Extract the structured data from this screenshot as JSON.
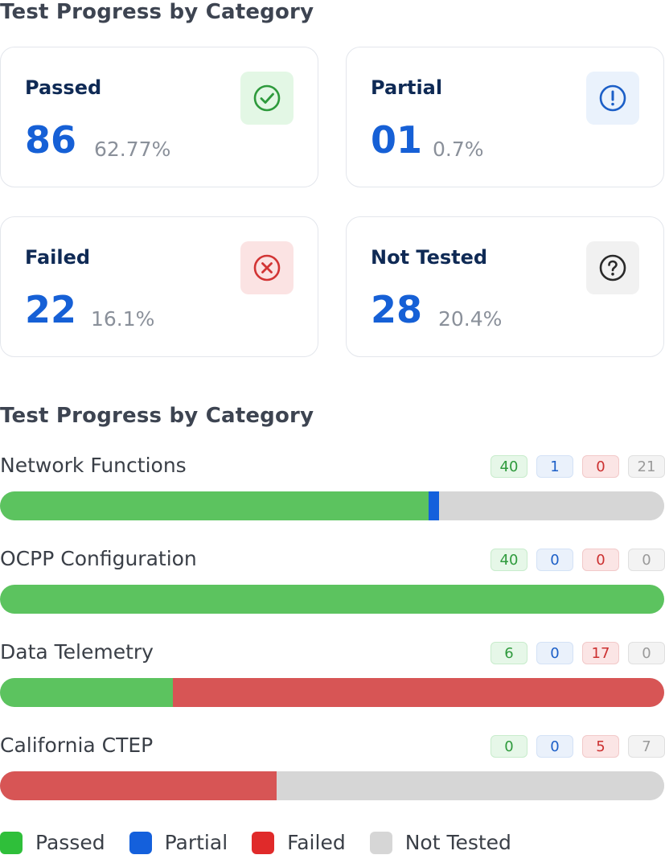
{
  "summary": {
    "title": "Test Progress by Category",
    "cards": [
      {
        "label": "Passed",
        "value": "86",
        "percent": "62.77%",
        "icon": "check-circle-icon",
        "icon_color": "#2e9a3c",
        "icon_bg": "#e3f7e5"
      },
      {
        "label": "Partial",
        "value": "01",
        "percent": "0.7%",
        "icon": "exclamation-circle-icon",
        "icon_color": "#1c5fc7",
        "icon_bg": "#eaf2fc"
      },
      {
        "label": "Failed",
        "value": "22",
        "percent": "16.1%",
        "icon": "x-circle-icon",
        "icon_color": "#d23535",
        "icon_bg": "#fbe3e3"
      },
      {
        "label": "Not Tested",
        "value": "28",
        "percent": "20.4%",
        "icon": "question-circle-icon",
        "icon_color": "#2a2a2a",
        "icon_bg": "#f1f1f1"
      }
    ]
  },
  "categories": {
    "title": "Test Progress by Category",
    "items": [
      {
        "name": "Network Functions",
        "passed": 40,
        "partial": 1,
        "failed": 0,
        "not_tested": 21
      },
      {
        "name": "OCPP Configuration",
        "passed": 40,
        "partial": 0,
        "failed": 0,
        "not_tested": 0
      },
      {
        "name": "Data Telemetry",
        "passed": 6,
        "partial": 0,
        "failed": 17,
        "not_tested": 0
      },
      {
        "name": "California CTEP",
        "passed": 0,
        "partial": 0,
        "failed": 5,
        "not_tested": 7
      }
    ]
  },
  "legend": [
    {
      "label": "Passed",
      "color": "#2fbf3a"
    },
    {
      "label": "Partial",
      "color": "#1460dc"
    },
    {
      "label": "Failed",
      "color": "#e02a2a"
    },
    {
      "label": "Not Tested",
      "color": "#d6d6d6"
    }
  ],
  "colors": {
    "passed": "#5cc35f",
    "partial": "#1460dc",
    "failed": "#d75555",
    "not_tested": "#d6d6d6",
    "value_blue": "#1660d6"
  }
}
